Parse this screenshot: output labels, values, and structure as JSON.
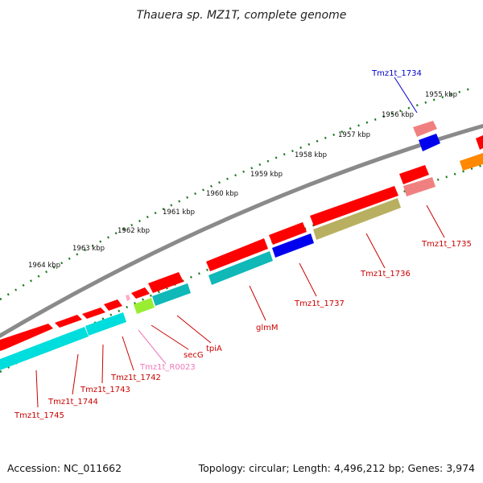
{
  "title": "Thauera sp. MZ1T, complete genome",
  "footer": {
    "accession": "Accession: NC_011662",
    "summary": "Topology: circular; Length: 4,496,212 bp; Genes: 3,974"
  },
  "scale_labels": [
    "1955 kbp",
    "1956 kbp",
    "1957 kbp",
    "1958 kbp",
    "1959 kbp",
    "1960 kbp",
    "1961 kbp",
    "1962 kbp",
    "1963 kbp",
    "1964 kbp"
  ],
  "genes": [
    {
      "name": "Tmz1t_1734",
      "color": "#0000cc"
    },
    {
      "name": "Tmz1t_1735",
      "color": "#cc0000"
    },
    {
      "name": "Tmz1t_1736",
      "color": "#cc0000"
    },
    {
      "name": "Tmz1t_1737",
      "color": "#cc0000"
    },
    {
      "name": "glmM",
      "color": "#cc0000"
    },
    {
      "name": "tpiA",
      "color": "#cc0000"
    },
    {
      "name": "secG",
      "color": "#cc0000"
    },
    {
      "name": "Tmz1t_R0023",
      "color": "#ee77bb"
    },
    {
      "name": "Tmz1t_1742",
      "color": "#cc0000"
    },
    {
      "name": "Tmz1t_1743",
      "color": "#cc0000"
    },
    {
      "name": "Tmz1t_1744",
      "color": "#cc0000"
    },
    {
      "name": "Tmz1t_1745",
      "color": "#cc0000"
    }
  ],
  "colors": {
    "backbone": "#888888",
    "tick": "#1a7a1a",
    "red": "#ff0000",
    "pink": "#f08080",
    "blue": "#0000ee",
    "cyan": "#00dddd",
    "teal": "#10b8b8",
    "olive": "#b8b060",
    "lime": "#99ee33",
    "orange": "#ff8800"
  }
}
